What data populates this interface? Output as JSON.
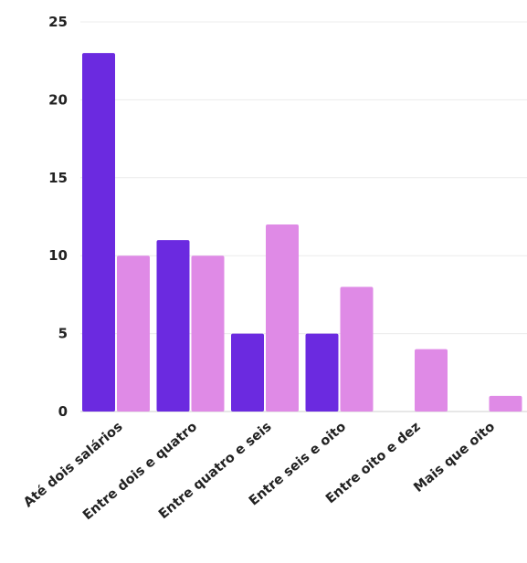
{
  "chart_data": {
    "type": "bar",
    "title": "",
    "xlabel": "",
    "ylabel": "",
    "ylim": [
      0,
      25
    ],
    "yticks": [
      0,
      5,
      10,
      15,
      20,
      25
    ],
    "grid": true,
    "legend": "none",
    "categories": [
      "Até dois salários",
      "Entre dois e quatro",
      "Entre quatro e seis",
      "Entre seis e oito",
      "Entre oito e dez",
      "Mais que oito"
    ],
    "series": [
      {
        "color": "#6b2ae0",
        "values": [
          23,
          11,
          5,
          5,
          0,
          0
        ]
      },
      {
        "color": "#df8ae6",
        "values": [
          10,
          10,
          12,
          8,
          4,
          1
        ]
      }
    ]
  }
}
